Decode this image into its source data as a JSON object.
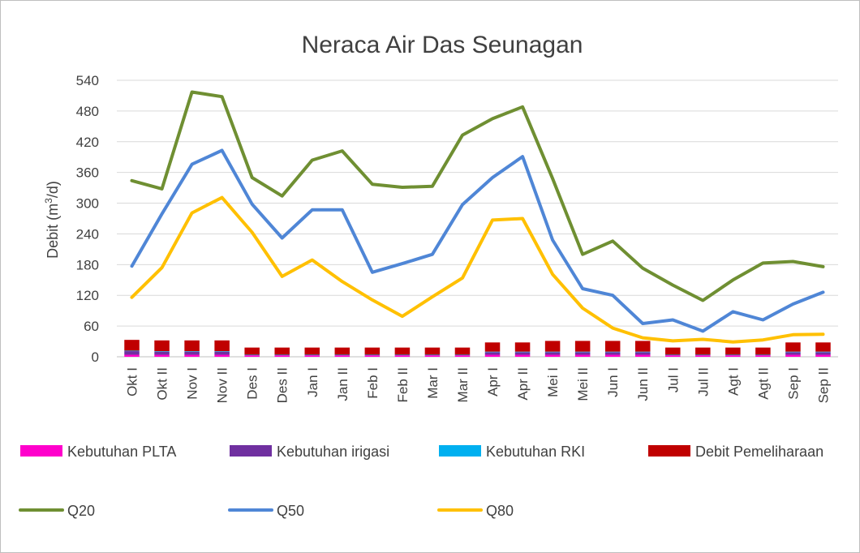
{
  "chart_data": {
    "type": "line",
    "title": "Neraca Air Das Seunagan",
    "ylabel": "Debit (m3/d)",
    "ylabel_parts": {
      "main": "Debit (m",
      "sup": "3",
      "tail": "/d)"
    },
    "xlabel": "",
    "ylim": [
      0,
      540
    ],
    "yticks": [
      0,
      60,
      120,
      180,
      240,
      300,
      360,
      420,
      480,
      540
    ],
    "grid": true,
    "legend_position": "bottom",
    "categories": [
      "Okt I",
      "Okt II",
      "Nov I",
      "Nov II",
      "Des I",
      "Des II",
      "Jan I",
      "Jan II",
      "Feb I",
      "Feb II",
      "Mar I",
      "Mar II",
      "Apr I",
      "Apr II",
      "Mei I",
      "Mei II",
      "Jun I",
      "Jun II",
      "Jul I",
      "Jul II",
      "Agt I",
      "Agt II",
      "Sep I",
      "Sep II"
    ],
    "bar_series": [
      {
        "name": "Kebutuhan PLTA",
        "color": "#ff00cc",
        "values": [
          4,
          4,
          4,
          4,
          3,
          3,
          3,
          3,
          3,
          3,
          3,
          3,
          4,
          4,
          4,
          4,
          4,
          4,
          3,
          3,
          3,
          3,
          4,
          4
        ]
      },
      {
        "name": "Kebutuhan irigasi",
        "color": "#7030a0",
        "values": [
          7,
          6,
          6,
          6,
          0,
          0,
          0,
          0,
          0,
          0,
          0,
          0,
          5,
          5,
          5,
          5,
          5,
          5,
          0,
          0,
          0,
          0,
          5,
          5
        ]
      },
      {
        "name": "Kebutuhan RKI",
        "color": "#00b0f0",
        "values": [
          1,
          1,
          1,
          1,
          1,
          1,
          1,
          1,
          1,
          1,
          1,
          1,
          1,
          1,
          1,
          1,
          1,
          1,
          1,
          1,
          1,
          1,
          1,
          1
        ]
      },
      {
        "name": "Debit Pemeliharaan",
        "color": "#c00000",
        "values": [
          21,
          21,
          21,
          21,
          14,
          14,
          14,
          14,
          14,
          14,
          14,
          14,
          18,
          18,
          21,
          21,
          21,
          21,
          14,
          14,
          14,
          14,
          18,
          18
        ]
      }
    ],
    "line_series": [
      {
        "name": "Q20",
        "color": "#6f8f32",
        "values": [
          344,
          328,
          517,
          508,
          350,
          314,
          384,
          402,
          337,
          331,
          333,
          433,
          465,
          488,
          348,
          200,
          226,
          173,
          140,
          110,
          150,
          183,
          186,
          176
        ]
      },
      {
        "name": "Q50",
        "color": "#4f86d6",
        "values": [
          177,
          279,
          376,
          403,
          298,
          232,
          287,
          287,
          165,
          182,
          200,
          297,
          350,
          391,
          228,
          133,
          120,
          65,
          72,
          50,
          88,
          72,
          103,
          126
        ]
      },
      {
        "name": "Q80",
        "color": "#ffc000",
        "values": [
          116,
          174,
          281,
          311,
          243,
          157,
          189,
          147,
          111,
          79,
          117,
          154,
          267,
          270,
          161,
          95,
          56,
          37,
          31,
          34,
          29,
          33,
          43,
          44
        ]
      }
    ],
    "legend": [
      {
        "label": "Kebutuhan PLTA",
        "kind": "bar",
        "color": "#ff00cc"
      },
      {
        "label": "Kebutuhan irigasi",
        "kind": "bar",
        "color": "#7030a0"
      },
      {
        "label": "Kebutuhan RKI",
        "kind": "bar",
        "color": "#00b0f0"
      },
      {
        "label": "Debit Pemeliharaan",
        "kind": "bar",
        "color": "#c00000"
      },
      {
        "label": "Q20",
        "kind": "line",
        "color": "#6f8f32"
      },
      {
        "label": "Q50",
        "kind": "line",
        "color": "#4f86d6"
      },
      {
        "label": "Q80",
        "kind": "line",
        "color": "#ffc000"
      }
    ]
  }
}
